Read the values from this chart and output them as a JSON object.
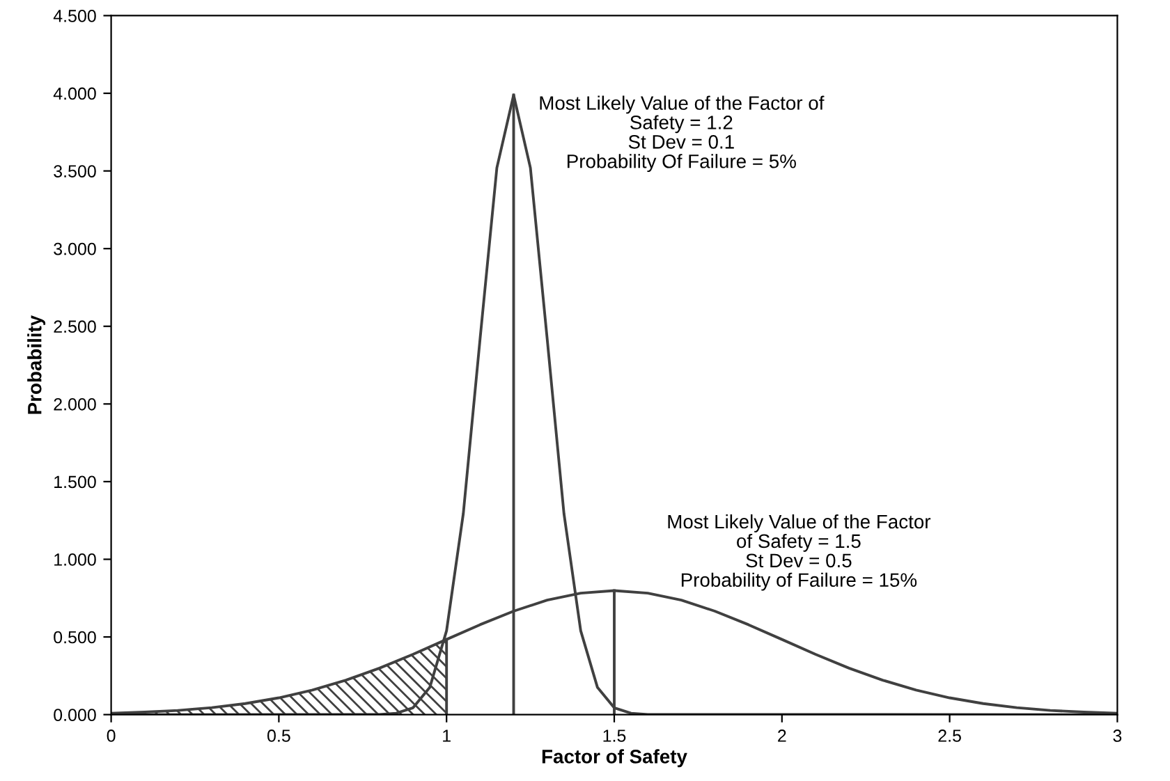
{
  "chart_data": {
    "type": "line",
    "xlabel": "Factor of Safety",
    "ylabel": "Probability",
    "xlim": [
      0,
      3
    ],
    "xticks": [
      0,
      0.5,
      1,
      1.5,
      2,
      2.5,
      3
    ],
    "ylim": [
      0,
      4.5
    ],
    "yticks": [
      {
        "value": 0,
        "label": "0.000"
      },
      {
        "value": 0.5,
        "label": "0.500"
      },
      {
        "value": 1,
        "label": "1.000"
      },
      {
        "value": 1.5,
        "label": "1.500"
      },
      {
        "value": 2,
        "label": "2.000"
      },
      {
        "value": 2.5,
        "label": "2.500"
      },
      {
        "value": 3,
        "label": "3.000"
      },
      {
        "value": 3.5,
        "label": "3.500"
      },
      {
        "value": 4,
        "label": "4.000"
      },
      {
        "value": 4.5,
        "label": "4.500"
      }
    ],
    "grid": false,
    "legend": false,
    "marker": "none",
    "line_style": "solid",
    "series": [
      {
        "type": "area",
        "color": "#404040",
        "x": [
          0,
          0.1,
          0.2,
          0.3,
          0.4,
          0.5,
          0.6,
          0.7,
          0.8,
          0.9,
          1.0
        ],
        "values": [
          0.009,
          0.016,
          0.027,
          0.045,
          0.071,
          0.108,
          0.158,
          0.222,
          0.299,
          0.388,
          0.484
        ]
      },
      {
        "color": "#404040",
        "x": [
          0,
          0.1,
          0.2,
          0.3,
          0.4,
          0.5,
          0.6,
          0.7,
          0.8,
          0.9,
          1.0,
          1.1,
          1.2,
          1.3,
          1.4,
          1.5,
          1.6,
          1.7,
          1.8,
          1.9,
          2.0,
          2.1,
          2.2,
          2.3,
          2.4,
          2.5,
          2.6,
          2.7,
          2.8,
          2.9,
          3.0
        ],
        "values": [
          0.009,
          0.016,
          0.027,
          0.045,
          0.071,
          0.108,
          0.158,
          0.222,
          0.299,
          0.388,
          0.484,
          0.579,
          0.666,
          0.737,
          0.782,
          0.798,
          0.782,
          0.737,
          0.666,
          0.579,
          0.484,
          0.388,
          0.299,
          0.222,
          0.158,
          0.108,
          0.071,
          0.045,
          0.027,
          0.016,
          0.009
        ]
      },
      {
        "color": "#404040",
        "x": [
          0,
          0.8,
          0.85,
          0.9,
          0.95,
          1.0,
          1.05,
          1.1,
          1.15,
          1.2,
          1.25,
          1.3,
          1.35,
          1.4,
          1.45,
          1.5,
          1.55,
          1.6,
          3.0
        ],
        "values": [
          0,
          0.001,
          0.009,
          0.044,
          0.175,
          0.54,
          1.295,
          2.42,
          3.52,
          3.989,
          3.52,
          2.42,
          1.295,
          0.54,
          0.175,
          0.044,
          0.009,
          0.001,
          0
        ]
      },
      {
        "color": "#404040",
        "x": [
          1.0,
          1.0
        ],
        "values": [
          0,
          0.484
        ]
      },
      {
        "color": "#404040",
        "x": [
          1.2,
          1.2
        ],
        "values": [
          0,
          3.989
        ]
      },
      {
        "color": "#404040",
        "x": [
          1.5,
          1.5
        ],
        "values": [
          0,
          0.798
        ]
      }
    ],
    "annotations": [
      {
        "text": "Most Likely Value of the Factor of\nSafety = 1.2\nSt Dev = 0.1\nProbability Of Failure = 5%",
        "x": 1.2,
        "y": 3.989
      },
      {
        "text": "Most Likely Value of the Factor\nof Safety = 1.5\nSt Dev = 0.5\nProbability of Failure = 15%",
        "x": 1.5,
        "y": 0.798
      }
    ]
  }
}
